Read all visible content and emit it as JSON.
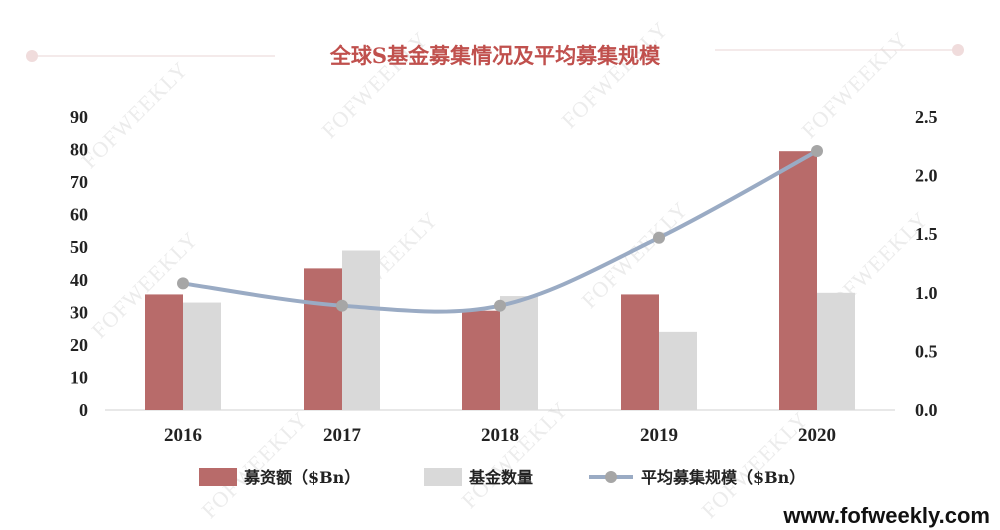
{
  "chart_data": {
    "type": "bar",
    "title": "全球S基金募集情况及平均募集规模",
    "categories": [
      "2016",
      "2017",
      "2018",
      "2019",
      "2020"
    ],
    "series": [
      {
        "name": "募资额（$Bn）",
        "type": "bar",
        "axis": "left",
        "values": [
          35.5,
          43.5,
          30.5,
          35.5,
          79.5
        ]
      },
      {
        "name": "基金数量",
        "type": "bar",
        "axis": "left",
        "values": [
          33,
          49,
          35,
          24,
          36
        ]
      },
      {
        "name": "平均募集规模（$Bn）",
        "type": "line",
        "axis": "right",
        "values": [
          1.08,
          0.89,
          0.89,
          1.47,
          2.21
        ]
      }
    ],
    "y_left": {
      "ylim": [
        0,
        90
      ],
      "ticks": [
        "0",
        "10",
        "20",
        "30",
        "40",
        "50",
        "60",
        "70",
        "80",
        "90"
      ]
    },
    "y_right": {
      "ylim": [
        0,
        2.5
      ],
      "ticks": [
        "0.0",
        "0.5",
        "1.0",
        "1.5",
        "2.0",
        "2.5"
      ]
    },
    "grid": false,
    "legend": "bottom"
  },
  "colors": {
    "bar1": "#b86b6a",
    "bar2": "#d9d9d9",
    "line": "#9aabc4",
    "marker": "#a6a6a6",
    "title": "#c0504d"
  },
  "site_url": "www.fofweekly.com",
  "watermark_text": "FOFWEEKLY"
}
